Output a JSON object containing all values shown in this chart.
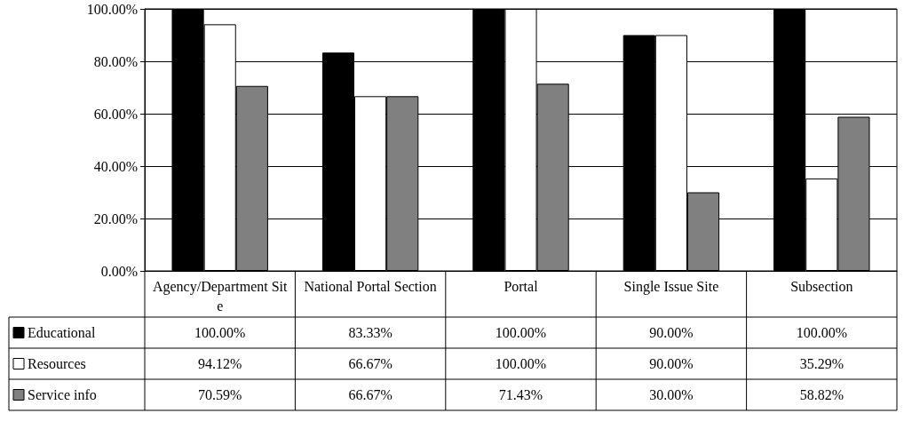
{
  "chart_data": {
    "type": "bar",
    "categories": [
      "Agency/Department Site",
      "National Portal Section",
      "Portal",
      "Single Issue Site",
      "Subsection"
    ],
    "series": [
      {
        "name": "Educational",
        "color": "#000000",
        "values": [
          100,
          83.33,
          100,
          90,
          100
        ],
        "value_labels": [
          "100.00%",
          "83.33%",
          "100.00%",
          "90.00%",
          "100.00%"
        ]
      },
      {
        "name": "Resources",
        "color": "#ffffff",
        "values": [
          94.12,
          66.67,
          100,
          90,
          35.29
        ],
        "value_labels": [
          "94.12%",
          "66.67%",
          "100.00%",
          "90.00%",
          "35.29%"
        ]
      },
      {
        "name": "Service info",
        "color": "#808080",
        "values": [
          70.59,
          66.67,
          71.43,
          30,
          58.82
        ],
        "value_labels": [
          "70.59%",
          "66.67%",
          "71.43%",
          "30.00%",
          "58.82%"
        ]
      }
    ],
    "ylim": [
      0,
      100
    ],
    "yticks": [
      {
        "value": 0,
        "label": "0.00%"
      },
      {
        "value": 20,
        "label": "20.00%"
      },
      {
        "value": 40,
        "label": "40.00%"
      },
      {
        "value": 60,
        "label": "60.00%"
      },
      {
        "value": 80,
        "label": "80.00%"
      },
      {
        "value": 100,
        "label": "100.00%"
      }
    ],
    "grid": "y",
    "legend": "bottom left"
  }
}
